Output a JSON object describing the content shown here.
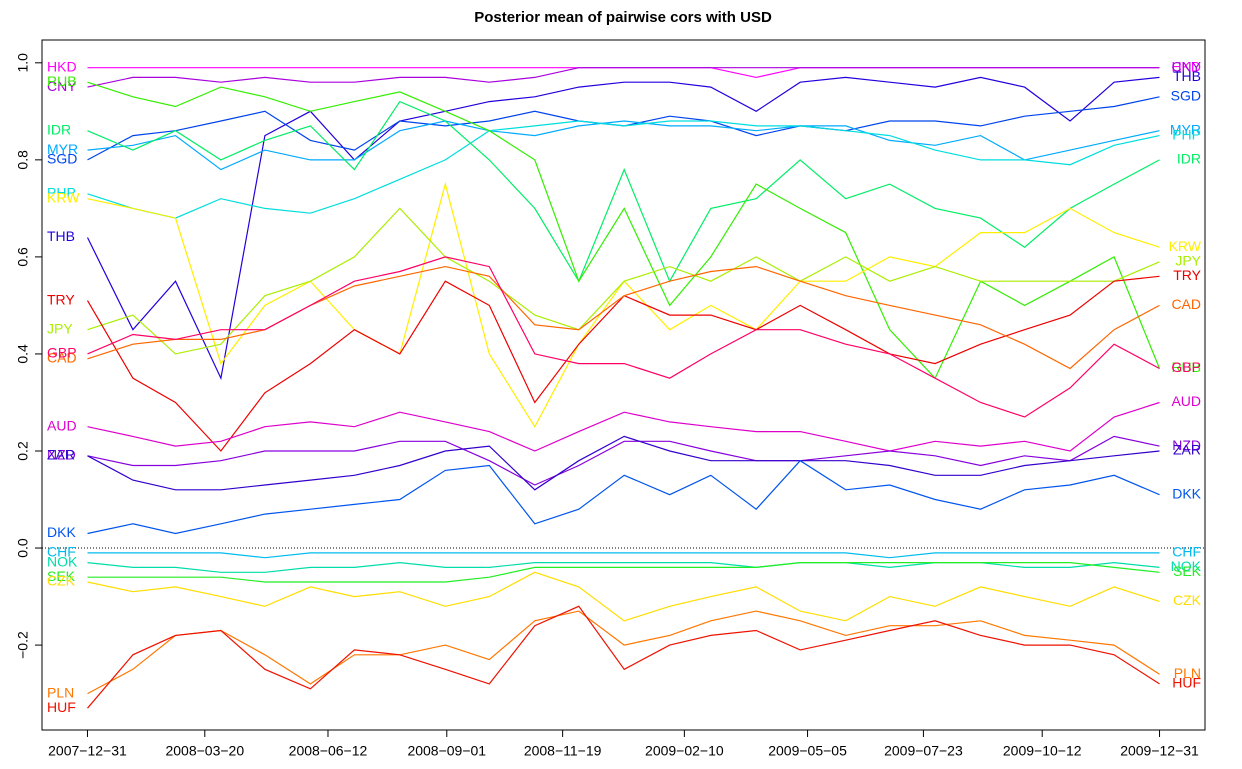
{
  "chart_data": {
    "type": "line",
    "title": "Posterior mean of pairwise cors with USD",
    "x": [
      "2007-12-31",
      "2008-01-31",
      "2008-02-29",
      "2008-03-31",
      "2008-04-30",
      "2008-05-31",
      "2008-06-30",
      "2008-07-31",
      "2008-08-31",
      "2008-09-30",
      "2008-10-31",
      "2008-11-30",
      "2008-12-31",
      "2009-01-31",
      "2009-02-28",
      "2009-03-31",
      "2009-04-30",
      "2009-05-31",
      "2009-06-30",
      "2009-07-31",
      "2009-08-31",
      "2009-09-30",
      "2009-10-31",
      "2009-11-30",
      "2009-12-31"
    ],
    "xlim": [
      "2007-11-30",
      "2010-01-31"
    ],
    "xticks": [
      {
        "value": "2007-12-31",
        "label": "2007−12−31"
      },
      {
        "value": "2008-03-20",
        "label": "2008−03−20"
      },
      {
        "value": "2008-06-12",
        "label": "2008−06−12"
      },
      {
        "value": "2008-09-01",
        "label": "2008−09−01"
      },
      {
        "value": "2008-11-19",
        "label": "2008−11−19"
      },
      {
        "value": "2009-02-10",
        "label": "2009−02−10"
      },
      {
        "value": "2009-05-05",
        "label": "2009−05−05"
      },
      {
        "value": "2009-07-23",
        "label": "2009−07−23"
      },
      {
        "value": "2009-10-12",
        "label": "2009−10−12"
      },
      {
        "value": "2009-12-31",
        "label": "2009−12−31"
      }
    ],
    "ylim": [
      -0.375,
      1.047
    ],
    "yticks": [
      {
        "value": 1,
        "label": "1.0"
      },
      {
        "value": 0.8,
        "label": "0.8"
      },
      {
        "value": 0.6,
        "label": "0.6"
      },
      {
        "value": 0.4,
        "label": "0.4"
      },
      {
        "value": 0.2,
        "label": "0.2"
      },
      {
        "value": 0,
        "label": "0.0"
      },
      {
        "value": -0.2,
        "label": "−0.2"
      }
    ],
    "reference_line": 0,
    "series": [
      {
        "name": "HKD",
        "color": "#ff00ff",
        "values": [
          0.99,
          0.99,
          0.99,
          0.99,
          0.99,
          0.99,
          0.99,
          0.99,
          0.99,
          0.99,
          0.99,
          0.99,
          0.99,
          0.99,
          0.99,
          0.97,
          0.99,
          0.99,
          0.99,
          0.99,
          0.99,
          0.99,
          0.99,
          0.99,
          0.99
        ]
      },
      {
        "name": "CNY",
        "color": "#aa00dd",
        "values": [
          0.95,
          0.97,
          0.97,
          0.96,
          0.97,
          0.96,
          0.96,
          0.97,
          0.97,
          0.96,
          0.97,
          0.99,
          0.99,
          0.99,
          0.99,
          0.99,
          0.99,
          0.99,
          0.99,
          0.99,
          0.99,
          0.99,
          0.99,
          0.99,
          0.99
        ]
      },
      {
        "name": "THB",
        "color": "#2200dd",
        "values": [
          0.64,
          0.45,
          0.55,
          0.35,
          0.85,
          0.9,
          0.8,
          0.88,
          0.9,
          0.92,
          0.93,
          0.95,
          0.96,
          0.96,
          0.95,
          0.9,
          0.96,
          0.97,
          0.96,
          0.95,
          0.97,
          0.95,
          0.88,
          0.96,
          0.97
        ]
      },
      {
        "name": "SGD",
        "color": "#0044ee",
        "values": [
          0.8,
          0.85,
          0.86,
          0.88,
          0.9,
          0.84,
          0.82,
          0.88,
          0.87,
          0.88,
          0.9,
          0.88,
          0.87,
          0.89,
          0.88,
          0.85,
          0.87,
          0.86,
          0.88,
          0.88,
          0.87,
          0.89,
          0.9,
          0.91,
          0.93
        ]
      },
      {
        "name": "MYR",
        "color": "#00aaff",
        "values": [
          0.82,
          0.83,
          0.85,
          0.78,
          0.82,
          0.8,
          0.8,
          0.86,
          0.88,
          0.86,
          0.85,
          0.87,
          0.88,
          0.87,
          0.87,
          0.86,
          0.87,
          0.87,
          0.84,
          0.83,
          0.85,
          0.8,
          0.82,
          0.84,
          0.86
        ]
      },
      {
        "name": "PHP",
        "color": "#00dddd",
        "values": [
          0.73,
          0.7,
          0.68,
          0.72,
          0.7,
          0.69,
          0.72,
          0.76,
          0.8,
          0.86,
          0.87,
          0.88,
          0.87,
          0.88,
          0.88,
          0.87,
          0.87,
          0.86,
          0.85,
          0.82,
          0.8,
          0.8,
          0.79,
          0.83,
          0.85
        ]
      },
      {
        "name": "IDR",
        "color": "#00ee66",
        "values": [
          0.86,
          0.82,
          0.86,
          0.8,
          0.84,
          0.87,
          0.78,
          0.92,
          0.88,
          0.8,
          0.7,
          0.55,
          0.78,
          0.55,
          0.7,
          0.72,
          0.8,
          0.72,
          0.75,
          0.7,
          0.68,
          0.62,
          0.7,
          0.75,
          0.8
        ]
      },
      {
        "name": "RUB",
        "color": "#33ee00",
        "values": [
          0.96,
          0.93,
          0.91,
          0.95,
          0.93,
          0.9,
          0.92,
          0.94,
          0.9,
          0.86,
          0.8,
          0.55,
          0.7,
          0.5,
          0.6,
          0.75,
          0.7,
          0.65,
          0.45,
          0.35,
          0.55,
          0.5,
          0.55,
          0.6,
          0.37
        ]
      },
      {
        "name": "KRW",
        "color": "#ffee00",
        "values": [
          0.72,
          0.7,
          0.68,
          0.38,
          0.5,
          0.55,
          0.45,
          0.4,
          0.75,
          0.4,
          0.25,
          0.42,
          0.55,
          0.45,
          0.5,
          0.45,
          0.55,
          0.55,
          0.6,
          0.58,
          0.65,
          0.65,
          0.7,
          0.65,
          0.62
        ]
      },
      {
        "name": "JPY",
        "color": "#aaee00",
        "values": [
          0.45,
          0.48,
          0.4,
          0.42,
          0.52,
          0.55,
          0.6,
          0.7,
          0.6,
          0.55,
          0.48,
          0.45,
          0.55,
          0.58,
          0.55,
          0.6,
          0.55,
          0.6,
          0.55,
          0.58,
          0.55,
          0.55,
          0.55,
          0.55,
          0.59
        ]
      },
      {
        "name": "TRY",
        "color": "#ee0000",
        "values": [
          0.51,
          0.35,
          0.3,
          0.2,
          0.32,
          0.38,
          0.45,
          0.4,
          0.55,
          0.5,
          0.3,
          0.42,
          0.52,
          0.48,
          0.48,
          0.45,
          0.5,
          0.45,
          0.4,
          0.38,
          0.42,
          0.45,
          0.48,
          0.55,
          0.56
        ]
      },
      {
        "name": "CAD",
        "color": "#ff6600",
        "values": [
          0.39,
          0.42,
          0.43,
          0.43,
          0.45,
          0.5,
          0.54,
          0.56,
          0.58,
          0.56,
          0.46,
          0.45,
          0.52,
          0.55,
          0.57,
          0.58,
          0.55,
          0.52,
          0.5,
          0.48,
          0.46,
          0.42,
          0.37,
          0.45,
          0.5
        ]
      },
      {
        "name": "GBP",
        "color": "#ff0066",
        "values": [
          0.4,
          0.44,
          0.43,
          0.45,
          0.45,
          0.5,
          0.55,
          0.57,
          0.6,
          0.58,
          0.4,
          0.38,
          0.38,
          0.35,
          0.4,
          0.45,
          0.45,
          0.42,
          0.4,
          0.35,
          0.3,
          0.27,
          0.33,
          0.42,
          0.37
        ]
      },
      {
        "name": "AUD",
        "color": "#dd00cc",
        "values": [
          0.25,
          0.23,
          0.21,
          0.22,
          0.25,
          0.26,
          0.25,
          0.28,
          0.26,
          0.24,
          0.2,
          0.24,
          0.28,
          0.26,
          0.25,
          0.24,
          0.24,
          0.22,
          0.2,
          0.22,
          0.21,
          0.22,
          0.2,
          0.27,
          0.3
        ]
      },
      {
        "name": "NZD",
        "color": "#8800dd",
        "values": [
          0.19,
          0.17,
          0.17,
          0.18,
          0.2,
          0.2,
          0.2,
          0.22,
          0.22,
          0.18,
          0.13,
          0.17,
          0.22,
          0.22,
          0.2,
          0.18,
          0.18,
          0.19,
          0.2,
          0.19,
          0.17,
          0.19,
          0.18,
          0.23,
          0.21
        ]
      },
      {
        "name": "ZAR",
        "color": "#3300cc",
        "values": [
          0.19,
          0.14,
          0.12,
          0.12,
          0.13,
          0.14,
          0.15,
          0.17,
          0.2,
          0.21,
          0.12,
          0.18,
          0.23,
          0.2,
          0.18,
          0.18,
          0.18,
          0.18,
          0.17,
          0.15,
          0.15,
          0.17,
          0.18,
          0.19,
          0.2
        ]
      },
      {
        "name": "DKK",
        "color": "#0055ee",
        "values": [
          0.03,
          0.05,
          0.03,
          0.05,
          0.07,
          0.08,
          0.09,
          0.1,
          0.16,
          0.17,
          0.05,
          0.08,
          0.15,
          0.11,
          0.15,
          0.08,
          0.18,
          0.12,
          0.13,
          0.1,
          0.08,
          0.12,
          0.13,
          0.15,
          0.11
        ]
      },
      {
        "name": "CHF",
        "color": "#00bbee",
        "values": [
          -0.01,
          -0.01,
          -0.01,
          -0.01,
          -0.02,
          -0.01,
          -0.01,
          -0.01,
          -0.01,
          -0.01,
          -0.01,
          -0.01,
          -0.01,
          -0.01,
          -0.01,
          -0.01,
          -0.01,
          -0.01,
          -0.02,
          -0.01,
          -0.01,
          -0.01,
          -0.01,
          -0.01,
          -0.01
        ]
      },
      {
        "name": "NOK",
        "color": "#00ddaa",
        "values": [
          -0.03,
          -0.04,
          -0.04,
          -0.05,
          -0.05,
          -0.04,
          -0.04,
          -0.03,
          -0.04,
          -0.04,
          -0.03,
          -0.03,
          -0.03,
          -0.03,
          -0.03,
          -0.04,
          -0.03,
          -0.03,
          -0.04,
          -0.03,
          -0.03,
          -0.04,
          -0.04,
          -0.03,
          -0.04
        ]
      },
      {
        "name": "SEK",
        "color": "#22ee22",
        "values": [
          -0.06,
          -0.06,
          -0.06,
          -0.06,
          -0.07,
          -0.07,
          -0.07,
          -0.07,
          -0.07,
          -0.06,
          -0.04,
          -0.04,
          -0.04,
          -0.04,
          -0.04,
          -0.04,
          -0.03,
          -0.03,
          -0.03,
          -0.03,
          -0.03,
          -0.03,
          -0.03,
          -0.04,
          -0.05
        ]
      },
      {
        "name": "CZK",
        "color": "#ffdd00",
        "values": [
          -0.07,
          -0.09,
          -0.08,
          -0.1,
          -0.12,
          -0.08,
          -0.1,
          -0.09,
          -0.12,
          -0.1,
          -0.05,
          -0.08,
          -0.15,
          -0.12,
          -0.1,
          -0.08,
          -0.13,
          -0.15,
          -0.1,
          -0.12,
          -0.08,
          -0.1,
          -0.12,
          -0.08,
          -0.11
        ]
      },
      {
        "name": "PLN",
        "color": "#ff7700",
        "values": [
          -0.3,
          -0.25,
          -0.18,
          -0.17,
          -0.22,
          -0.28,
          -0.22,
          -0.22,
          -0.2,
          -0.23,
          -0.15,
          -0.13,
          -0.2,
          -0.18,
          -0.15,
          -0.13,
          -0.15,
          -0.18,
          -0.16,
          -0.16,
          -0.15,
          -0.18,
          -0.19,
          -0.2,
          -0.26
        ]
      },
      {
        "name": "HUF",
        "color": "#ee1100",
        "values": [
          -0.33,
          -0.22,
          -0.18,
          -0.17,
          -0.25,
          -0.29,
          -0.21,
          -0.22,
          -0.25,
          -0.28,
          -0.16,
          -0.12,
          -0.25,
          -0.2,
          -0.18,
          -0.17,
          -0.21,
          -0.19,
          -0.17,
          -0.15,
          -0.18,
          -0.2,
          -0.2,
          -0.22,
          -0.28
        ]
      }
    ]
  }
}
